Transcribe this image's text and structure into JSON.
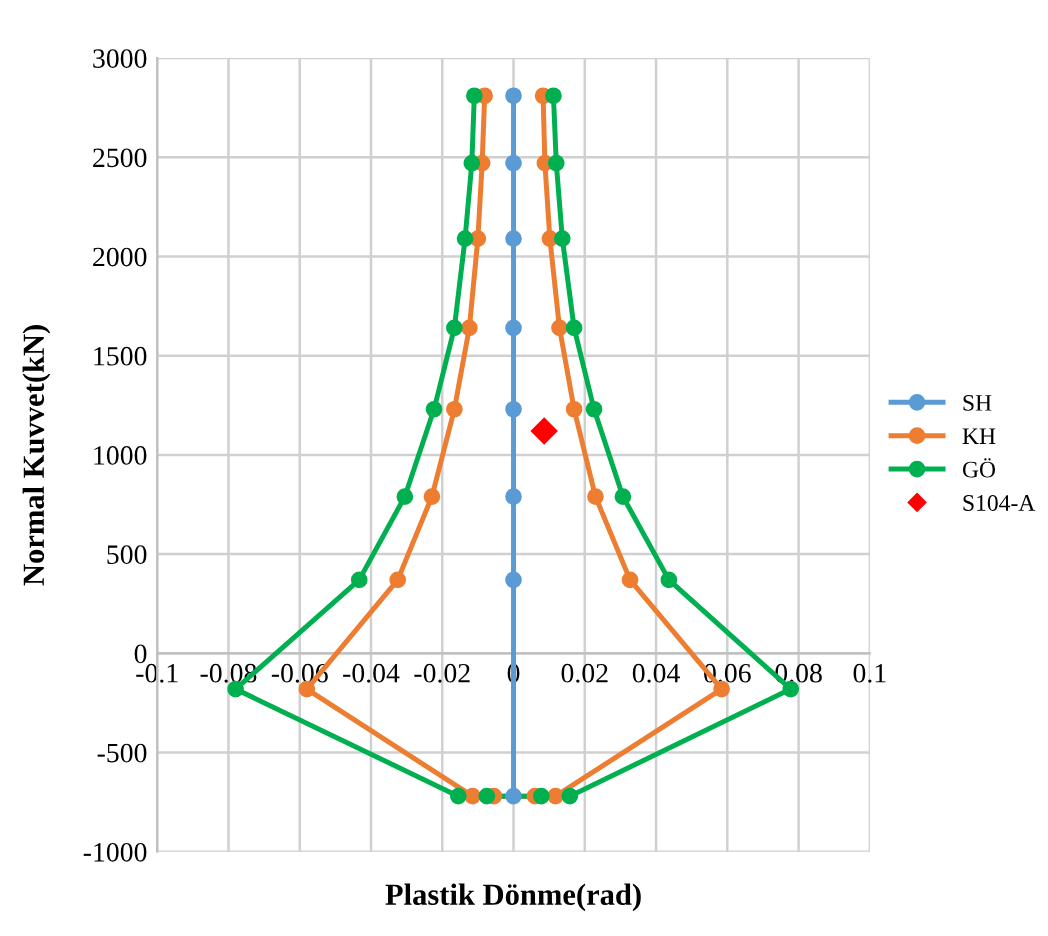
{
  "chart_data": {
    "type": "line",
    "xlabel": "Plastik Dönme(rad)",
    "ylabel": "Normal Kuvvet(kN)",
    "xlim": [
      -0.1,
      0.1
    ],
    "xticks": [
      -0.1,
      -0.08,
      -0.06,
      -0.04,
      -0.02,
      0,
      0.02,
      0.04,
      0.06,
      0.08,
      0.1
    ],
    "ylim": [
      -1000,
      3000
    ],
    "yticks": [
      -1000,
      -500,
      0,
      500,
      1000,
      1500,
      2000,
      2500,
      3000
    ],
    "grid": true,
    "legend": "right",
    "marker": "circle",
    "line_style": "solid",
    "series": [
      {
        "name": "SH",
        "color": "#5b9bd5",
        "x": [
          0,
          0,
          0,
          0,
          0,
          0,
          0,
          0
        ],
        "values": [
          2810,
          2470,
          2090,
          1640,
          1230,
          790,
          370,
          -720
        ]
      },
      {
        "name": "KH",
        "color": "#ed7d31",
        "x": [
          0.0083,
          0.0088,
          0.0102,
          0.0129,
          0.017,
          0.023,
          0.0327,
          0.0584,
          0.0118,
          0.006,
          -0.0055,
          -0.0115,
          -0.058,
          -0.0325,
          -0.0229,
          -0.0166,
          -0.0124,
          -0.01,
          -0.0088,
          -0.0081
        ],
        "values": [
          2810,
          2470,
          2090,
          1640,
          1230,
          790,
          370,
          -180,
          -720,
          -720,
          -720,
          -720,
          -180,
          370,
          790,
          1230,
          1640,
          2090,
          2470,
          2810
        ]
      },
      {
        "name": "GÖ",
        "color": "#00b050",
        "x": [
          0.0112,
          0.012,
          0.0137,
          0.017,
          0.0226,
          0.0307,
          0.0436,
          0.0778,
          0.0158,
          0.0078,
          -0.0075,
          -0.0155,
          -0.078,
          -0.0433,
          -0.0305,
          -0.0223,
          -0.0166,
          -0.0136,
          -0.0117,
          -0.011
        ],
        "values": [
          2810,
          2470,
          2090,
          1640,
          1230,
          790,
          370,
          -180,
          -720,
          -720,
          -720,
          -720,
          -180,
          370,
          790,
          1230,
          1640,
          2090,
          2470,
          2810
        ]
      },
      {
        "name": "S104-A",
        "type": "scatter",
        "marker": "diamond",
        "color": "#ff0000",
        "x": [
          0.0086
        ],
        "values": [
          1120
        ]
      }
    ]
  }
}
